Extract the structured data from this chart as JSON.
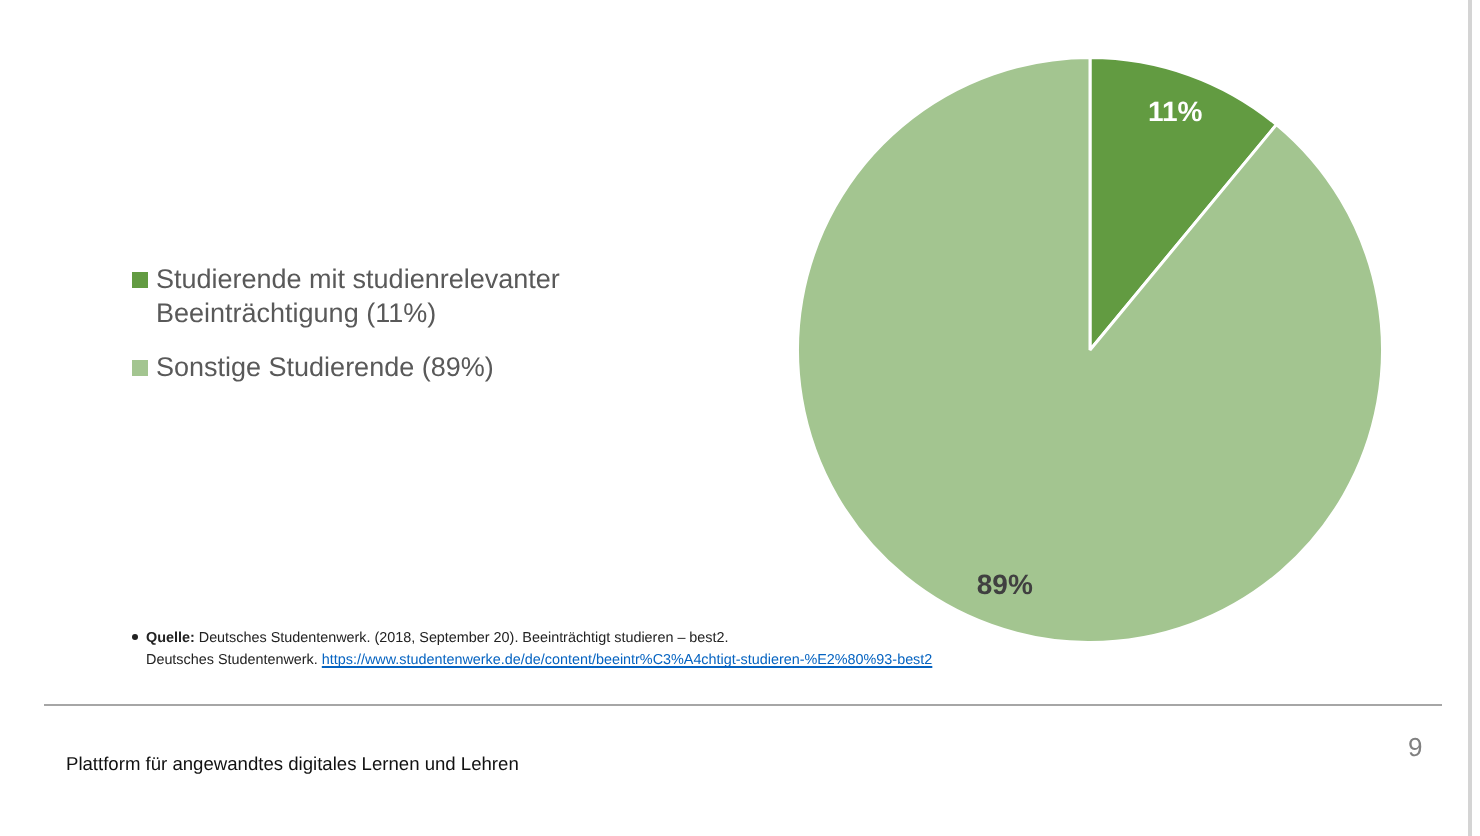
{
  "chart_data": {
    "type": "pie",
    "categories": [
      "Studierende mit studienrelevanter Beeinträchtigung (11%)",
      "Sonstige Studierende (89%)"
    ],
    "values": [
      11,
      89
    ],
    "colors": [
      "#629b41",
      "#a3c590"
    ],
    "value_labels": [
      "11%",
      "89%"
    ],
    "legend": "left",
    "annotations": [
      "Quelle: Deutsches Studentenwerk. (2018, September 20). Beeinträchtigt studieren – best2.\nDeutsches Studentenwerk. https://www.studentenwerke.de/de/content/beeintr%C3%A4chtigt-studieren-%E2%80%93-best2",
      "Plattform für angewandtes digitales Lernen und Lehren",
      "9"
    ]
  }
}
